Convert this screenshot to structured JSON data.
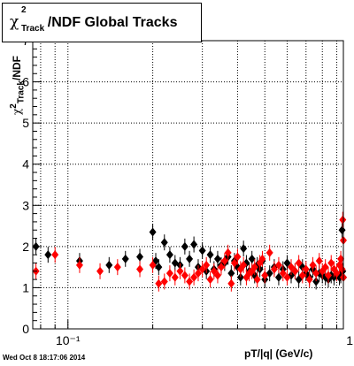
{
  "title": {
    "chi_symbol": "χ",
    "superscript": "2",
    "subscript": "Track",
    "rest": "/NDF  Global Tracks"
  },
  "y_axis_title": {
    "chi_symbol": "χ",
    "superscript": "2",
    "subscript": "Track",
    "rest": "/NDF"
  },
  "x_axis_title": "pT/|q| (GeV/c)",
  "timestamp": "Wed Oct  8 18:17:06 2014",
  "colors": {
    "series_black": "#000000",
    "series_red": "#ff0000",
    "grid": "#000000"
  },
  "chart_data": {
    "type": "scatter",
    "xscale": "log",
    "xlim": [
      0.075,
      0.95
    ],
    "ylim": [
      0,
      7
    ],
    "x_tick_labels": [
      "10⁻¹",
      "1"
    ],
    "y_tick_labels": [
      "0",
      "1",
      "2",
      "3",
      "4",
      "5",
      "6",
      "7"
    ],
    "grid": true,
    "series": [
      {
        "color": "#000000",
        "marker": "diamond",
        "points": [
          [
            0.077,
            2.0
          ],
          [
            0.085,
            1.8
          ],
          [
            0.11,
            1.65
          ],
          [
            0.14,
            1.55
          ],
          [
            0.16,
            1.7
          ],
          [
            0.18,
            1.75
          ],
          [
            0.2,
            2.35
          ],
          [
            0.205,
            1.65
          ],
          [
            0.21,
            1.5
          ],
          [
            0.22,
            2.1
          ],
          [
            0.23,
            1.8
          ],
          [
            0.24,
            1.6
          ],
          [
            0.25,
            1.55
          ],
          [
            0.26,
            2.0
          ],
          [
            0.27,
            1.7
          ],
          [
            0.28,
            2.05
          ],
          [
            0.29,
            1.5
          ],
          [
            0.3,
            1.9
          ],
          [
            0.31,
            1.4
          ],
          [
            0.32,
            1.8
          ],
          [
            0.33,
            1.45
          ],
          [
            0.34,
            1.7
          ],
          [
            0.35,
            1.55
          ],
          [
            0.36,
            1.6
          ],
          [
            0.37,
            1.75
          ],
          [
            0.38,
            1.35
          ],
          [
            0.39,
            1.65
          ],
          [
            0.4,
            1.5
          ],
          [
            0.41,
            1.25
          ],
          [
            0.42,
            1.95
          ],
          [
            0.43,
            1.6
          ],
          [
            0.44,
            1.4
          ],
          [
            0.45,
            1.7
          ],
          [
            0.46,
            1.3
          ],
          [
            0.47,
            1.55
          ],
          [
            0.48,
            1.45
          ],
          [
            0.49,
            1.65
          ],
          [
            0.5,
            1.2
          ],
          [
            0.52,
            1.35
          ],
          [
            0.54,
            1.5
          ],
          [
            0.56,
            1.25
          ],
          [
            0.58,
            1.45
          ],
          [
            0.6,
            1.6
          ],
          [
            0.62,
            1.3
          ],
          [
            0.64,
            1.4
          ],
          [
            0.66,
            1.2
          ],
          [
            0.68,
            1.5
          ],
          [
            0.7,
            1.35
          ],
          [
            0.72,
            1.25
          ],
          [
            0.74,
            1.45
          ],
          [
            0.76,
            1.15
          ],
          [
            0.78,
            1.35
          ],
          [
            0.8,
            1.3
          ],
          [
            0.82,
            1.25
          ],
          [
            0.84,
            1.2
          ],
          [
            0.86,
            1.3
          ],
          [
            0.88,
            1.25
          ],
          [
            0.9,
            1.35
          ],
          [
            0.92,
            1.25
          ],
          [
            0.93,
            1.3
          ],
          [
            0.94,
            2.4
          ],
          [
            0.945,
            1.4
          ],
          [
            0.95,
            1.25
          ]
        ]
      },
      {
        "color": "#ff0000",
        "marker": "diamond",
        "points": [
          [
            0.077,
            1.4
          ],
          [
            0.09,
            1.8
          ],
          [
            0.11,
            1.55
          ],
          [
            0.13,
            1.4
          ],
          [
            0.15,
            1.5
          ],
          [
            0.18,
            1.45
          ],
          [
            0.2,
            1.55
          ],
          [
            0.21,
            1.1
          ],
          [
            0.22,
            1.15
          ],
          [
            0.23,
            1.35
          ],
          [
            0.24,
            1.25
          ],
          [
            0.25,
            1.4
          ],
          [
            0.26,
            1.3
          ],
          [
            0.27,
            1.15
          ],
          [
            0.28,
            1.25
          ],
          [
            0.29,
            1.35
          ],
          [
            0.3,
            1.45
          ],
          [
            0.31,
            1.55
          ],
          [
            0.32,
            1.2
          ],
          [
            0.33,
            1.4
          ],
          [
            0.34,
            1.3
          ],
          [
            0.35,
            1.5
          ],
          [
            0.36,
            1.65
          ],
          [
            0.37,
            1.85
          ],
          [
            0.38,
            1.1
          ],
          [
            0.39,
            1.6
          ],
          [
            0.4,
            1.75
          ],
          [
            0.41,
            1.45
          ],
          [
            0.42,
            1.55
          ],
          [
            0.43,
            1.25
          ],
          [
            0.44,
            1.35
          ],
          [
            0.45,
            1.4
          ],
          [
            0.46,
            1.5
          ],
          [
            0.47,
            1.2
          ],
          [
            0.48,
            1.6
          ],
          [
            0.49,
            1.7
          ],
          [
            0.5,
            1.3
          ],
          [
            0.52,
            1.85
          ],
          [
            0.54,
            1.45
          ],
          [
            0.56,
            1.55
          ],
          [
            0.58,
            1.35
          ],
          [
            0.6,
            1.25
          ],
          [
            0.62,
            1.5
          ],
          [
            0.64,
            1.4
          ],
          [
            0.66,
            1.6
          ],
          [
            0.68,
            1.3
          ],
          [
            0.7,
            1.45
          ],
          [
            0.72,
            1.2
          ],
          [
            0.74,
            1.55
          ],
          [
            0.76,
            1.35
          ],
          [
            0.78,
            1.65
          ],
          [
            0.8,
            1.4
          ],
          [
            0.82,
            1.5
          ],
          [
            0.84,
            1.3
          ],
          [
            0.86,
            1.6
          ],
          [
            0.88,
            1.45
          ],
          [
            0.9,
            1.35
          ],
          [
            0.92,
            1.55
          ],
          [
            0.93,
            1.7
          ],
          [
            0.94,
            1.45
          ],
          [
            0.945,
            2.65
          ],
          [
            0.95,
            2.15
          ],
          [
            0.95,
            1.25
          ]
        ]
      }
    ]
  }
}
